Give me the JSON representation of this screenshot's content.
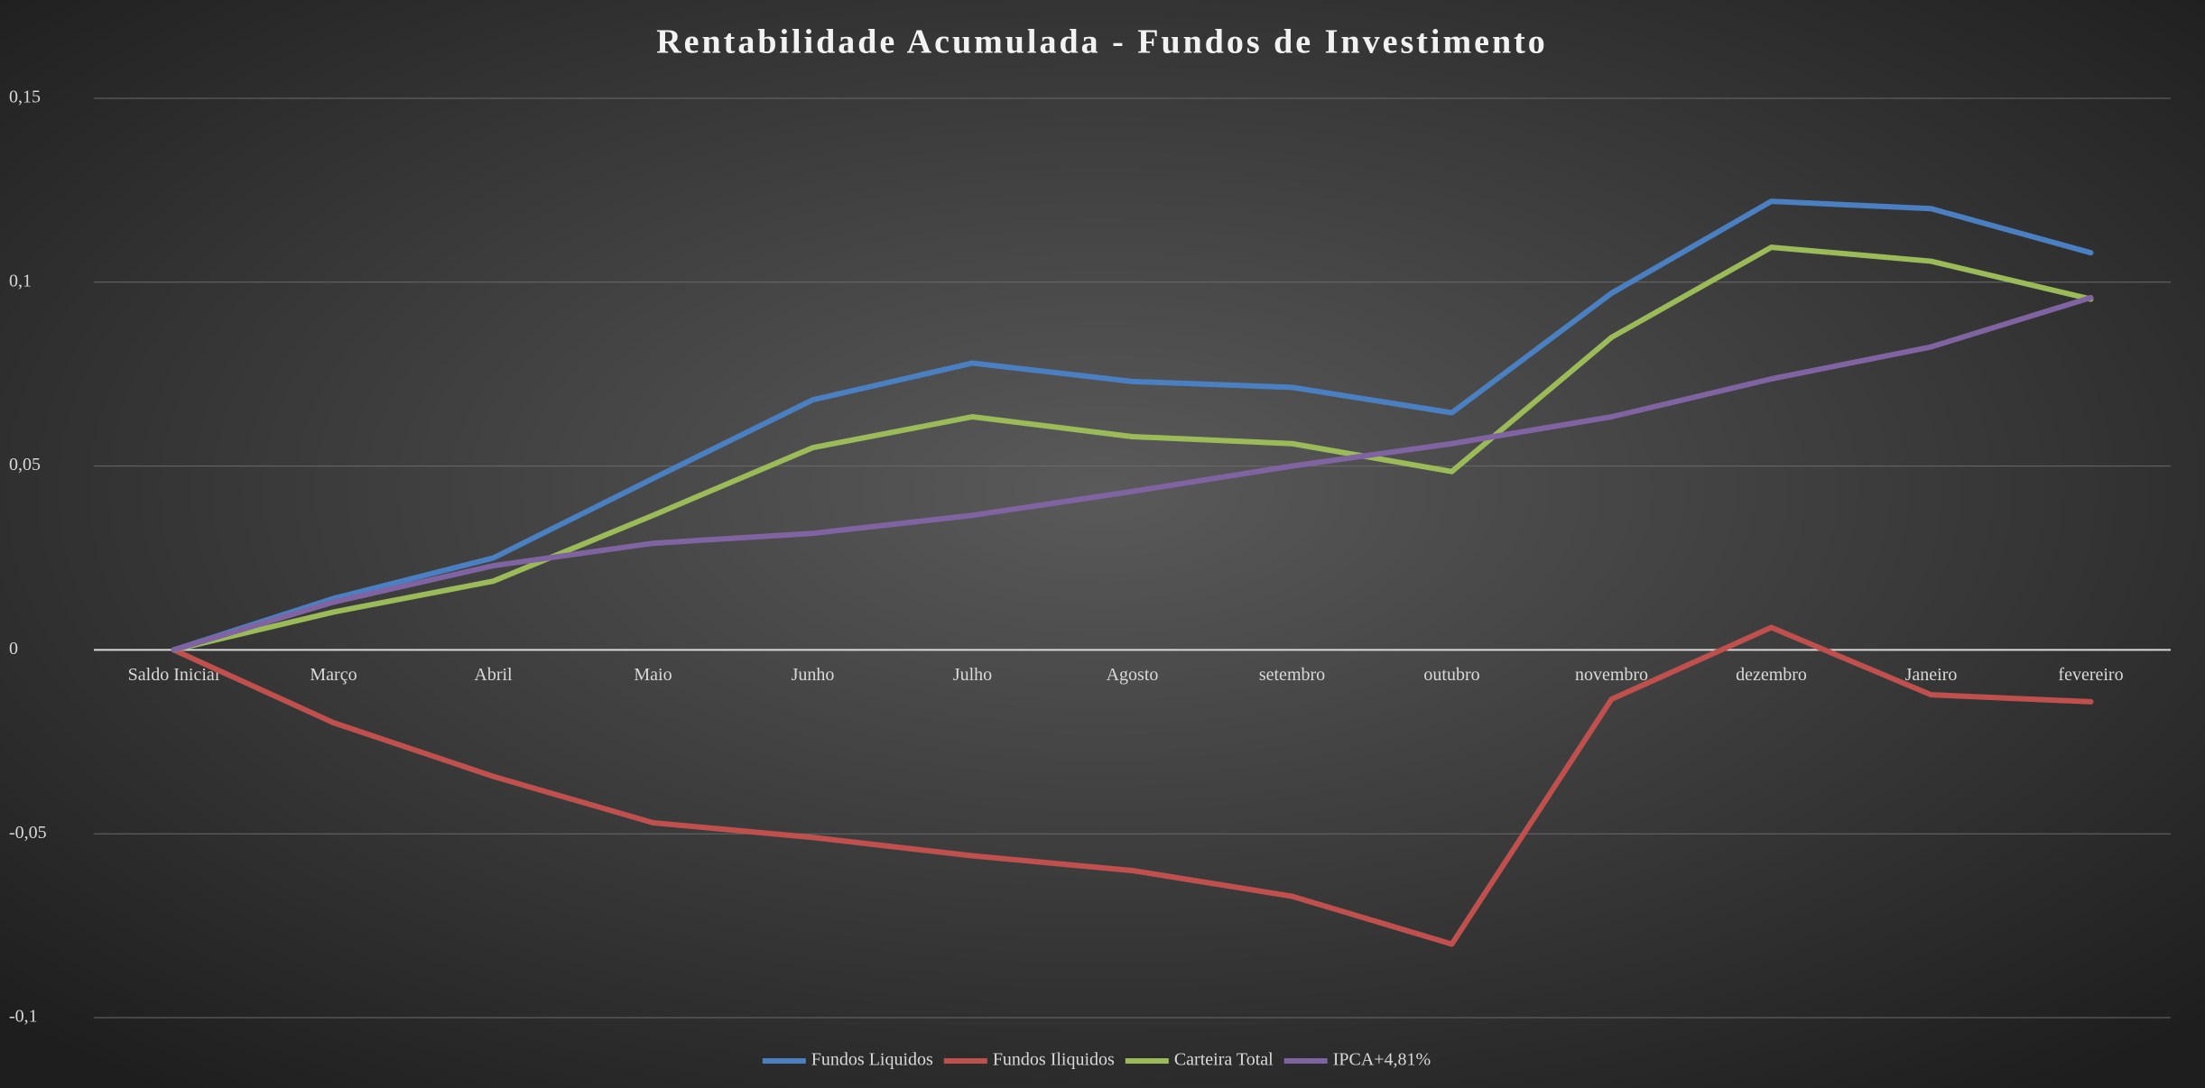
{
  "chart_data": {
    "type": "line",
    "title": "Rentabilidade Acumulada - Fundos de Investimento",
    "categories": [
      "Saldo Inicial",
      "Março",
      "Abril",
      "Maio",
      "Junho",
      "Julho",
      "Agosto",
      "setembro",
      "outubro",
      "novembro",
      "dezembro",
      "Janeiro",
      "fevereiro"
    ],
    "series": [
      {
        "name": "Fundos Liquidos",
        "color": "#4a7fc1",
        "values": [
          0,
          0.014,
          0.025,
          0.0466,
          0.068,
          0.078,
          0.073,
          0.0714,
          0.0645,
          0.097,
          0.122,
          0.12,
          0.108
        ]
      },
      {
        "name": "Fundos Iliquidos",
        "color": "#c0504d",
        "values": [
          0,
          -0.0198,
          -0.0344,
          -0.047,
          -0.051,
          -0.056,
          -0.06,
          -0.067,
          -0.08,
          -0.0134,
          0.0061,
          -0.0122,
          -0.0141
        ]
      },
      {
        "name": "Carteira Total",
        "color": "#9bbb59",
        "values": [
          0,
          0.0103,
          0.0187,
          0.0366,
          0.055,
          0.0634,
          0.058,
          0.0561,
          0.0485,
          0.085,
          0.1095,
          0.1057,
          0.0954
        ]
      },
      {
        "name": "IPCA+4,81%",
        "color": "#8064a2",
        "values": [
          0,
          0.013,
          0.0229,
          0.029,
          0.0317,
          0.0366,
          0.0431,
          0.05,
          0.0561,
          0.0634,
          0.0737,
          0.0824,
          0.0958
        ]
      }
    ],
    "ylim": [
      -0.1,
      0.15
    ],
    "yticks": [
      {
        "value": -0.1,
        "label": "-0,1"
      },
      {
        "value": -0.05,
        "label": "-0,05"
      },
      0,
      {
        "value": 0.05,
        "label": "0,05"
      },
      {
        "value": 0.1,
        "label": "0,1"
      },
      {
        "value": 0.15,
        "label": "0,15"
      }
    ],
    "grid": true,
    "legend": "bottom"
  }
}
